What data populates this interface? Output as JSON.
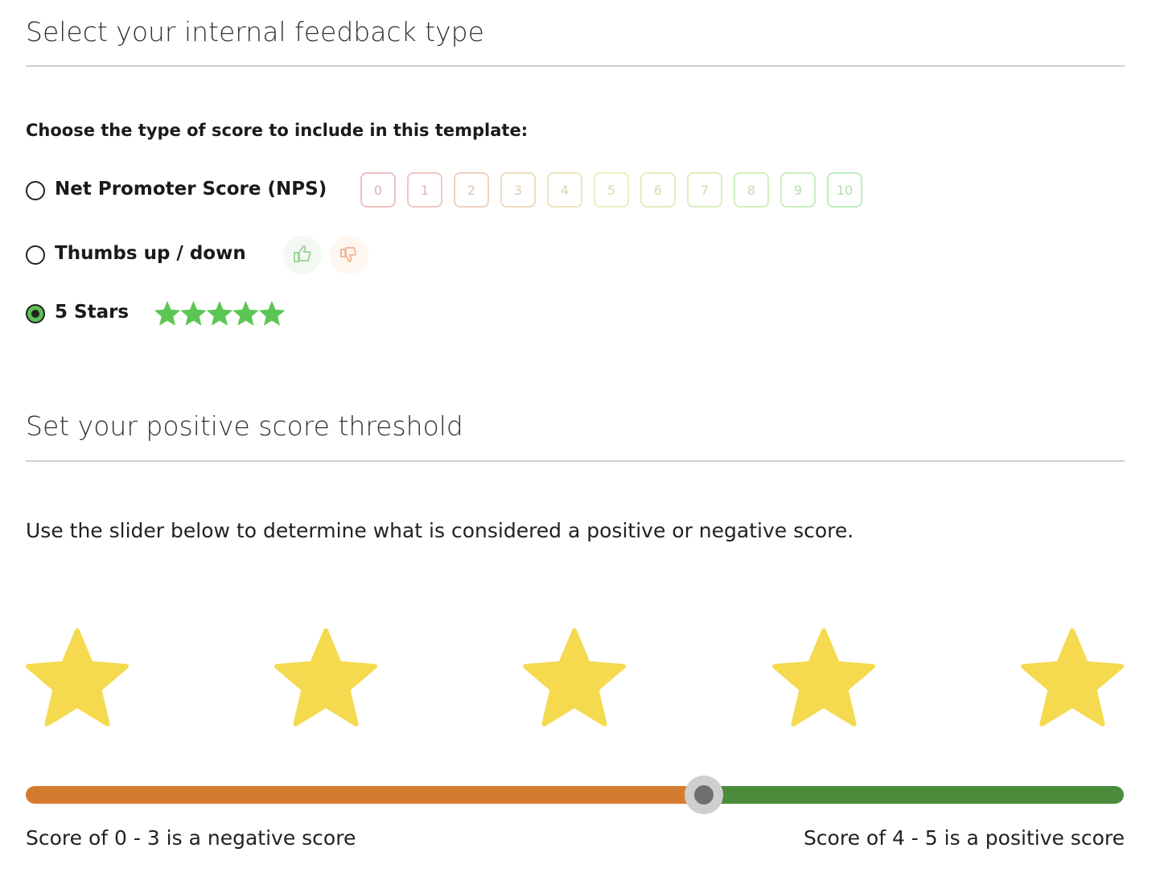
{
  "section1": {
    "title": "Select your internal feedback type",
    "prompt": "Choose the type of score to include in this template:",
    "options": [
      {
        "label": "Net Promoter Score (NPS)",
        "scale": [
          0,
          1,
          2,
          3,
          4,
          5,
          6,
          7,
          8,
          9,
          10
        ]
      },
      {
        "label": "Thumbs up / down"
      },
      {
        "label": "5 Stars",
        "selected": true
      }
    ]
  },
  "section2": {
    "title": "Set your positive score threshold",
    "description": "Use the slider below to determine what is considered a positive or negative score.",
    "negative_label": "Score of 0 - 3 is a negative score",
    "positive_label": "Score of 4 - 5 is a positive score"
  }
}
